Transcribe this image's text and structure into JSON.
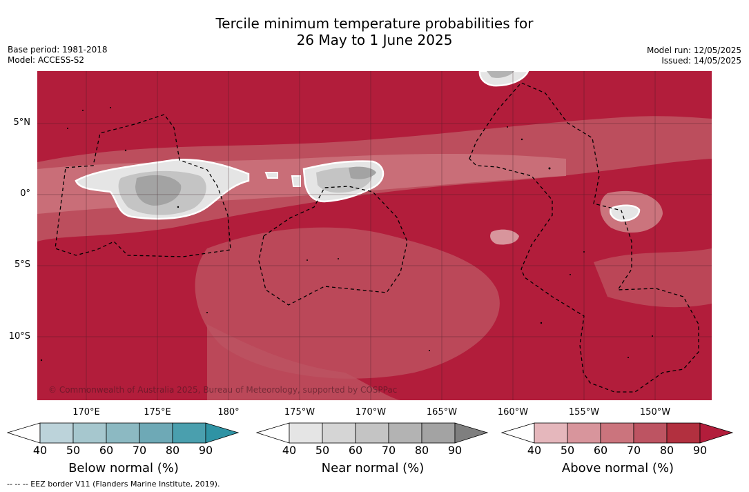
{
  "title_line1": "Tercile minimum temperature probabilities for",
  "title_line2": "26 May to 1 June 2025",
  "meta_left": {
    "base_period": "Base period: 1981-2018",
    "model": "Model: ACCESS-S2"
  },
  "meta_right": {
    "model_run": "Model run: 12/05/2025",
    "issued": "Issued: 14/05/2025"
  },
  "lat_labels": [
    "5°N",
    "0°",
    "5°S",
    "10°S"
  ],
  "lon_labels": [
    "170°E",
    "175°E",
    "180°",
    "175°W",
    "170°W",
    "165°W",
    "160°W",
    "155°W",
    "150°W"
  ],
  "copyright": "© Commonwealth of Australia 2025, Bureau of Meteorology, supported by COSPPac",
  "colorbars": [
    {
      "title": "Below normal (%)",
      "ticks": [
        "40",
        "50",
        "60",
        "70",
        "80",
        "90"
      ],
      "colors": [
        "#ffffff",
        "#bcd3da",
        "#a6c7ce",
        "#8cb9c2",
        "#6ea9b6",
        "#4a9fae",
        "#2f93a4"
      ]
    },
    {
      "title": "Near normal (%)",
      "ticks": [
        "40",
        "50",
        "60",
        "70",
        "80",
        "90"
      ],
      "colors": [
        "#ffffff",
        "#e5e5e5",
        "#d5d5d5",
        "#c4c4c4",
        "#b3b3b3",
        "#a3a3a3",
        "#7f7f7f"
      ]
    },
    {
      "title": "Above normal (%)",
      "ticks": [
        "40",
        "50",
        "60",
        "70",
        "80",
        "90"
      ],
      "colors": [
        "#ffffff",
        "#e5b7bc",
        "#d8959c",
        "#cb747d",
        "#bd5462",
        "#b2303f",
        "#b21d3b"
      ]
    }
  ],
  "footnote": "-- -- -- EEZ border V11 (Flanders Marine Institute, 2019)."
}
